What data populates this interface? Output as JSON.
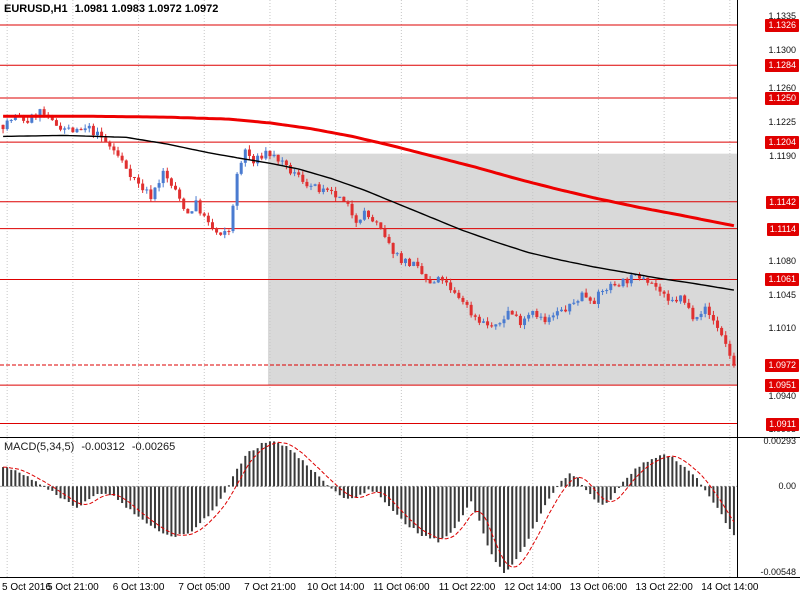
{
  "header": {
    "symbol_period": "EURUSD,H1",
    "ohlc": "1.0981 1.0983 1.0972 1.0972"
  },
  "chart_data": {
    "type": "candlestick",
    "symbol": "EURUSD",
    "timeframe": "H1",
    "title": "EURUSD,H1",
    "x_labels": [
      "5 Oct 2016",
      "5 Oct 21:00",
      "6 Oct 13:00",
      "7 Oct 05:00",
      "7 Oct 21:00",
      "10 Oct 14:00",
      "11 Oct 06:00",
      "11 Oct 22:00",
      "12 Oct 14:00",
      "13 Oct 06:00",
      "13 Oct 22:00",
      "14 Oct 14:00"
    ],
    "label_bar_indices": [
      1,
      17,
      33,
      49,
      65,
      81,
      97,
      113,
      129,
      145,
      161,
      177
    ],
    "total_bars": 179,
    "seed": 7,
    "price_axis": {
      "top": 1.1352,
      "bottom": 1.0897,
      "plain_ticks": [
        1.1335,
        1.13,
        1.126,
        1.1225,
        1.119,
        1.108,
        1.1045,
        1.101,
        1.094,
        1.0905
      ]
    },
    "level_lines": [
      1.1326,
      1.1284,
      1.125,
      1.1204,
      1.1142,
      1.1114,
      1.1061,
      1.0951,
      1.0911
    ],
    "current_price": 1.0972,
    "shaded_region": {
      "bar_start": 65,
      "price_top": 1.1192,
      "price_bottom": 1.0951
    },
    "price_close_keypoints": [
      [
        0,
        1.1222
      ],
      [
        3,
        1.123
      ],
      [
        6,
        1.1226
      ],
      [
        9,
        1.1236
      ],
      [
        12,
        1.1224
      ],
      [
        15,
        1.1219
      ],
      [
        18,
        1.1214
      ],
      [
        21,
        1.1218
      ],
      [
        24,
        1.1208
      ],
      [
        27,
        1.1195
      ],
      [
        30,
        1.1178
      ],
      [
        33,
        1.116
      ],
      [
        36,
        1.1148
      ],
      [
        39,
        1.1172
      ],
      [
        42,
        1.1152
      ],
      [
        45,
        1.113
      ],
      [
        47,
        1.114
      ],
      [
        50,
        1.1118
      ],
      [
        53,
        1.1105
      ],
      [
        55,
        1.1112
      ],
      [
        57,
        1.1168
      ],
      [
        59,
        1.1196
      ],
      [
        61,
        1.1182
      ],
      [
        64,
        1.1194
      ],
      [
        67,
        1.1186
      ],
      [
        69,
        1.1176
      ],
      [
        72,
        1.1168
      ],
      [
        75,
        1.1158
      ],
      [
        78,
        1.1152
      ],
      [
        81,
        1.1148
      ],
      [
        84,
        1.1136
      ],
      [
        86,
        1.1124
      ],
      [
        88,
        1.113
      ],
      [
        91,
        1.1118
      ],
      [
        94,
        1.1096
      ],
      [
        97,
        1.1082
      ],
      [
        100,
        1.1076
      ],
      [
        102,
        1.1066
      ],
      [
        104,
        1.1055
      ],
      [
        107,
        1.1062
      ],
      [
        109,
        1.1048
      ],
      [
        112,
        1.104
      ],
      [
        114,
        1.1026
      ],
      [
        117,
        1.1016
      ],
      [
        120,
        1.101
      ],
      [
        123,
        1.1028
      ],
      [
        126,
        1.1018
      ],
      [
        129,
        1.103
      ],
      [
        132,
        1.1016
      ],
      [
        135,
        1.1026
      ],
      [
        138,
        1.1032
      ],
      [
        141,
        1.1046
      ],
      [
        144,
        1.104
      ],
      [
        147,
        1.1052
      ],
      [
        150,
        1.1058
      ],
      [
        153,
        1.1062
      ],
      [
        156,
        1.1066
      ],
      [
        159,
        1.1054
      ],
      [
        162,
        1.1036
      ],
      [
        165,
        1.1042
      ],
      [
        168,
        1.1024
      ],
      [
        171,
        1.103
      ],
      [
        174,
        1.1012
      ],
      [
        176,
        1.0994
      ],
      [
        178,
        1.0972
      ]
    ],
    "ma_black_keypoints": [
      [
        0,
        1.121
      ],
      [
        15,
        1.1211
      ],
      [
        30,
        1.1209
      ],
      [
        40,
        1.1202
      ],
      [
        50,
        1.1193
      ],
      [
        58,
        1.1187
      ],
      [
        65,
        1.1182
      ],
      [
        72,
        1.1176
      ],
      [
        80,
        1.1166
      ],
      [
        88,
        1.1154
      ],
      [
        96,
        1.114
      ],
      [
        104,
        1.1126
      ],
      [
        112,
        1.1112
      ],
      [
        120,
        1.11
      ],
      [
        128,
        1.1089
      ],
      [
        136,
        1.1081
      ],
      [
        144,
        1.1074
      ],
      [
        152,
        1.1068
      ],
      [
        160,
        1.1062
      ],
      [
        168,
        1.1057
      ],
      [
        178,
        1.105
      ]
    ],
    "ma_red_keypoints": [
      [
        0,
        1.1231
      ],
      [
        20,
        1.1231
      ],
      [
        40,
        1.123
      ],
      [
        55,
        1.1228
      ],
      [
        65,
        1.1224
      ],
      [
        75,
        1.1218
      ],
      [
        85,
        1.121
      ],
      [
        95,
        1.12
      ],
      [
        105,
        1.1189
      ],
      [
        115,
        1.1178
      ],
      [
        125,
        1.1166
      ],
      [
        135,
        1.1155
      ],
      [
        145,
        1.1145
      ],
      [
        155,
        1.1136
      ],
      [
        165,
        1.1128
      ],
      [
        172,
        1.1122
      ],
      [
        178,
        1.1117
      ]
    ],
    "macd": {
      "label": "MACD(5,34,5)",
      "value_main": "-0.00312",
      "value_signal": "-0.00265",
      "axis": {
        "top": 0.0031,
        "bottom": -0.0058
      },
      "ticks": [
        0.00293,
        0,
        -0.00548
      ],
      "keypoints": [
        [
          0,
          0.0013
        ],
        [
          3,
          0.001
        ],
        [
          6,
          0.0006
        ],
        [
          9,
          0.0002
        ],
        [
          12,
          -0.0003
        ],
        [
          15,
          -0.0009
        ],
        [
          18,
          -0.0013
        ],
        [
          21,
          -0.0008
        ],
        [
          24,
          -0.0004
        ],
        [
          27,
          -0.0006
        ],
        [
          30,
          -0.0013
        ],
        [
          34,
          -0.0022
        ],
        [
          38,
          -0.0029
        ],
        [
          42,
          -0.0032
        ],
        [
          45,
          -0.003
        ],
        [
          48,
          -0.0024
        ],
        [
          51,
          -0.0016
        ],
        [
          54,
          -0.0004
        ],
        [
          57,
          0.0012
        ],
        [
          60,
          0.0022
        ],
        [
          63,
          0.0027
        ],
        [
          66,
          0.0029
        ],
        [
          69,
          0.0026
        ],
        [
          72,
          0.0019
        ],
        [
          75,
          0.0011
        ],
        [
          78,
          0.0003
        ],
        [
          81,
          -0.0004
        ],
        [
          84,
          -0.0008
        ],
        [
          87,
          -0.0006
        ],
        [
          89,
          -0.0002
        ],
        [
          91,
          -0.0004
        ],
        [
          94,
          -0.0013
        ],
        [
          98,
          -0.0024
        ],
        [
          102,
          -0.0031
        ],
        [
          106,
          -0.0035
        ],
        [
          109,
          -0.003
        ],
        [
          112,
          -0.0018
        ],
        [
          114,
          -0.001
        ],
        [
          116,
          -0.0022
        ],
        [
          118,
          -0.0038
        ],
        [
          120,
          -0.0048
        ],
        [
          122,
          -0.0055
        ],
        [
          124,
          -0.005
        ],
        [
          127,
          -0.0038
        ],
        [
          130,
          -0.0022
        ],
        [
          133,
          -0.0008
        ],
        [
          136,
          0.0004
        ],
        [
          138,
          0.0008
        ],
        [
          140,
          0.0005
        ],
        [
          142,
          -0.0002
        ],
        [
          144,
          -0.0009
        ],
        [
          146,
          -0.0012
        ],
        [
          148,
          -0.0008
        ],
        [
          150,
          -0.0001
        ],
        [
          152,
          0.0006
        ],
        [
          155,
          0.0013
        ],
        [
          158,
          0.0018
        ],
        [
          161,
          0.0021
        ],
        [
          164,
          0.0017
        ],
        [
          167,
          0.001
        ],
        [
          170,
          0.0002
        ],
        [
          172,
          -0.0006
        ],
        [
          174,
          -0.0014
        ],
        [
          176,
          -0.0023
        ],
        [
          178,
          -0.0031
        ]
      ]
    },
    "colors": {
      "up": "#4a7bd0",
      "down": "#e03030",
      "level": "#dd0000",
      "ma_fast": "#000000",
      "ma_slow": "#ee0000",
      "hist": "#3a3a3a",
      "signal": "#dd0000",
      "badge_bg": "#e00000",
      "badge_text": "#ffffff",
      "shade": "#d9d9d9",
      "grid": "#c6c6c6"
    }
  }
}
